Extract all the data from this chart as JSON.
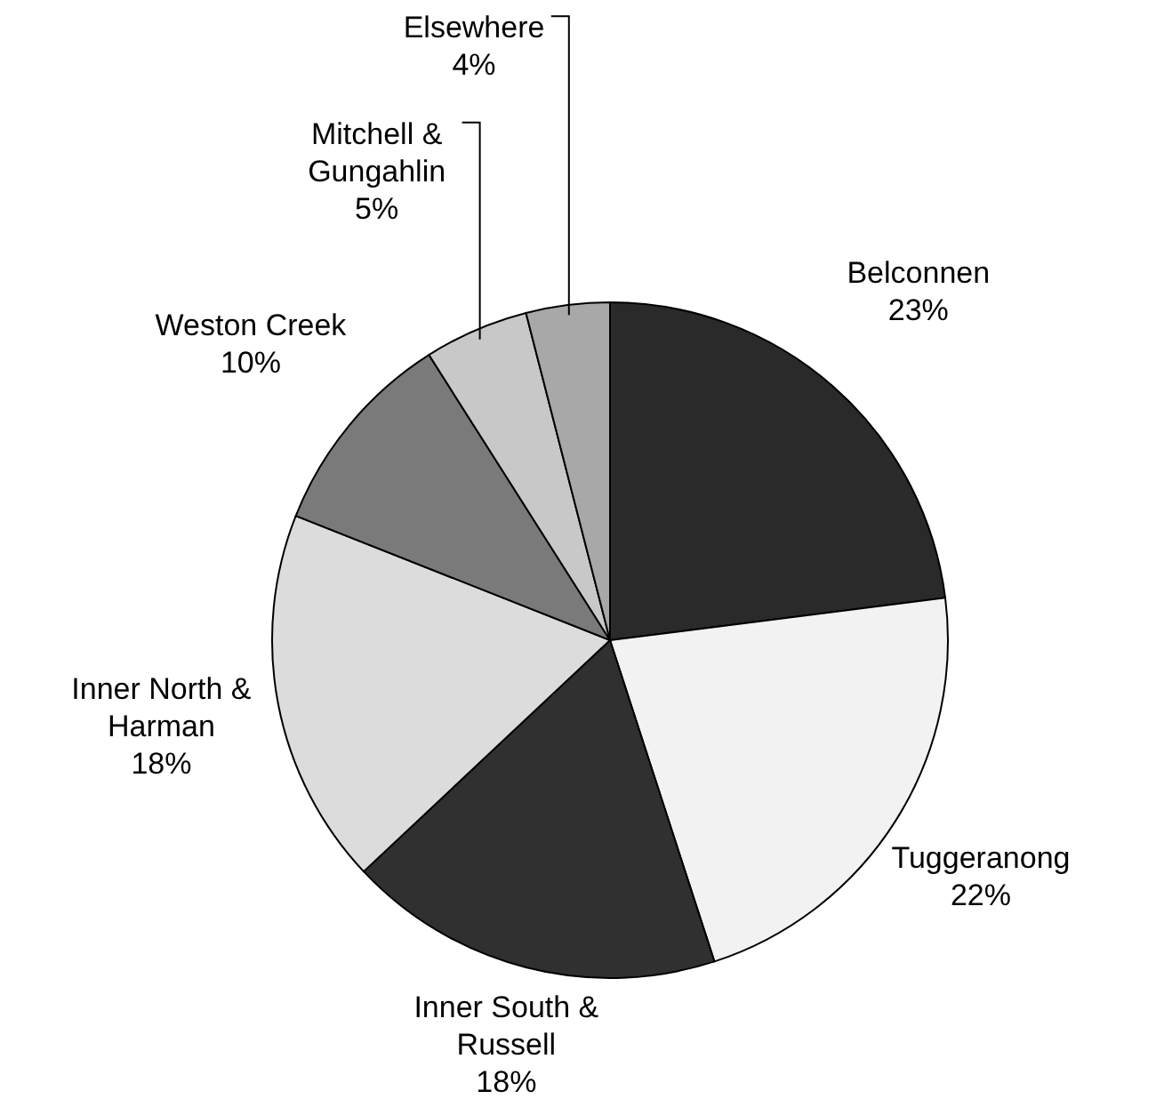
{
  "chart_data": {
    "type": "pie",
    "categories": [
      "Belconnen",
      "Tuggeranong",
      "Inner South & Russell",
      "Inner North & Harman",
      "Weston Creek",
      "Mitchell & Gungahlin",
      "Elsewhere"
    ],
    "values": [
      23,
      22,
      18,
      18,
      10,
      5,
      4
    ],
    "value_labels": [
      "23%",
      "22%",
      "18%",
      "18%",
      "10%",
      "5%",
      "4%"
    ],
    "colors": [
      "#2a2a2a",
      "#f2f2f2",
      "#303030",
      "#dcdcdc",
      "#7a7a7a",
      "#c8c8c8",
      "#a8a8a8"
    ],
    "legend": false
  }
}
